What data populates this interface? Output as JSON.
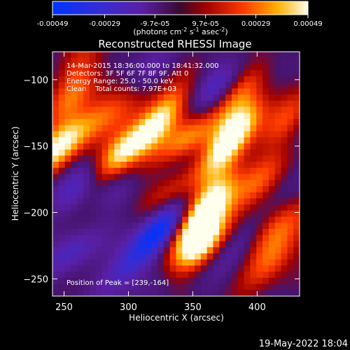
{
  "colorbar": {
    "ticks": [
      "-0.00049",
      "-0.00029",
      "-9.7e-05",
      "9.7e-05",
      "0.00029",
      "0.00049"
    ],
    "tick_values": [
      -0.00049,
      -0.00029,
      -9.7e-05,
      9.7e-05,
      0.00029,
      0.00049
    ],
    "range": [
      -0.00049,
      0.00049
    ],
    "unit_label_prefix": "(photons cm",
    "unit_sup1": "-2",
    "unit_mid1": " s",
    "unit_sup2": "-1",
    "unit_mid2": " asec",
    "unit_sup3": "-2",
    "unit_suffix": ")"
  },
  "chart_data": {
    "type": "heatmap",
    "title": "Reconstructed RHESSI Image",
    "xlabel": "Heliocentric X (arcsec)",
    "ylabel": "Heliocentric Y (arcsec)",
    "xlim": [
      241,
      433
    ],
    "ylim": [
      -263,
      -79
    ],
    "x_ticks": [
      250,
      300,
      350,
      400
    ],
    "y_ticks": [
      -100,
      -150,
      -200,
      -250
    ],
    "x_tick_labels": [
      "250",
      "300",
      "350",
      "400"
    ],
    "y_tick_labels": [
      "−100",
      "−150",
      "−200",
      "−250"
    ],
    "annotations": [
      "14-Mar-2015 18:36:00.000 to 18:41:32.000",
      "Detectors: 3F 5F 6F 7F 8F 9F, Att 0",
      "Energy Range: 25.0 - 50.0 keV",
      "Clean    Total counts: 7.97E+03"
    ],
    "peak_label": "Position of Peak = [239,-164]",
    "peak": [
      239,
      -164
    ],
    "blobs": [
      {
        "x": 246,
        "y": -150,
        "v": 0.00049
      },
      {
        "x": 258,
        "y": -112,
        "v": 0.00026
      },
      {
        "x": 263,
        "y": -87,
        "v": 0.00018
      },
      {
        "x": 274,
        "y": -132,
        "v": 0.00025
      },
      {
        "x": 280,
        "y": -198,
        "v": 0.00014
      },
      {
        "x": 291,
        "y": -158,
        "v": 0.00042
      },
      {
        "x": 302,
        "y": -118,
        "v": 0.00025
      },
      {
        "x": 305,
        "y": -172,
        "v": 0.00019
      },
      {
        "x": 318,
        "y": -138,
        "v": 0.00035
      },
      {
        "x": 330,
        "y": -120,
        "v": 0.00023
      },
      {
        "x": 334,
        "y": -180,
        "v": 0.0003
      },
      {
        "x": 345,
        "y": -148,
        "v": 0.00045
      },
      {
        "x": 352,
        "y": -210,
        "v": 0.00038
      },
      {
        "x": 357,
        "y": -224,
        "v": 0.00047
      },
      {
        "x": 364,
        "y": -192,
        "v": 0.00041
      },
      {
        "x": 372,
        "y": -158,
        "v": 0.00033
      },
      {
        "x": 384,
        "y": -137,
        "v": 0.00045
      },
      {
        "x": 388,
        "y": -108,
        "v": 0.00029
      },
      {
        "x": 398,
        "y": -180,
        "v": 0.00028
      },
      {
        "x": 405,
        "y": -218,
        "v": 0.00024
      },
      {
        "x": 412,
        "y": -235,
        "v": 0.0003
      },
      {
        "x": 420,
        "y": -132,
        "v": 0.00025
      },
      {
        "x": 425,
        "y": -206,
        "v": 0.00015
      },
      {
        "x": 325,
        "y": -212,
        "v": -0.00042
      },
      {
        "x": 291,
        "y": -185,
        "v": -0.0003
      },
      {
        "x": 338,
        "y": -165,
        "v": -0.0003
      },
      {
        "x": 300,
        "y": -240,
        "v": -0.00025
      },
      {
        "x": 370,
        "y": -105,
        "v": -0.00022
      },
      {
        "x": 394,
        "y": -220,
        "v": -0.00023
      },
      {
        "x": 265,
        "y": -175,
        "v": -0.00022
      },
      {
        "x": 258,
        "y": -228,
        "v": -0.00021
      },
      {
        "x": 310,
        "y": -103,
        "v": -0.0002
      }
    ]
  },
  "footer": {
    "timestamp": "19-May-2022 18:04"
  }
}
